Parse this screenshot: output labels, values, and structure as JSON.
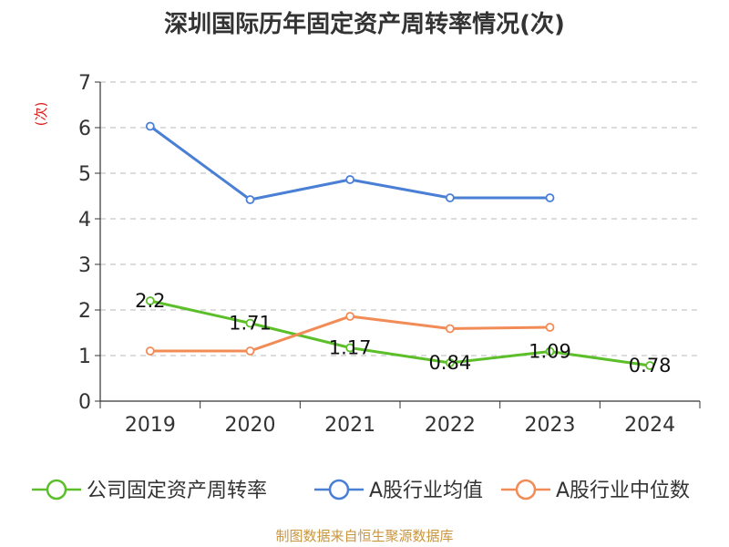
{
  "chart_data": {
    "type": "line",
    "title": "深圳国际历年固定资产周转率情况(次)",
    "ylabel": "(次)",
    "categories": [
      "2019",
      "2020",
      "2021",
      "2022",
      "2023",
      "2024"
    ],
    "ylim": [
      0,
      7
    ],
    "yticks": [
      "0",
      "1",
      "2",
      "3",
      "4",
      "5",
      "6",
      "7"
    ],
    "grid": true,
    "legend_position": "bottom",
    "series": [
      {
        "name": "公司固定资产周转率",
        "color": "#5cbf2a",
        "values": [
          2.2,
          1.71,
          1.17,
          0.84,
          1.09,
          0.78
        ],
        "labels": [
          "2.2",
          "1.71",
          "1.17",
          "0.84",
          "1.09",
          "0.78"
        ]
      },
      {
        "name": "A股行业均值",
        "color": "#4a7fd6",
        "values": [
          6.03,
          4.42,
          4.86,
          4.46,
          4.46,
          null
        ]
      },
      {
        "name": "A股行业中位数",
        "color": "#f28c57",
        "values": [
          1.1,
          1.1,
          1.86,
          1.59,
          1.62,
          null
        ]
      }
    ]
  },
  "footer": {
    "source": "制图数据来自恒生聚源数据库"
  }
}
